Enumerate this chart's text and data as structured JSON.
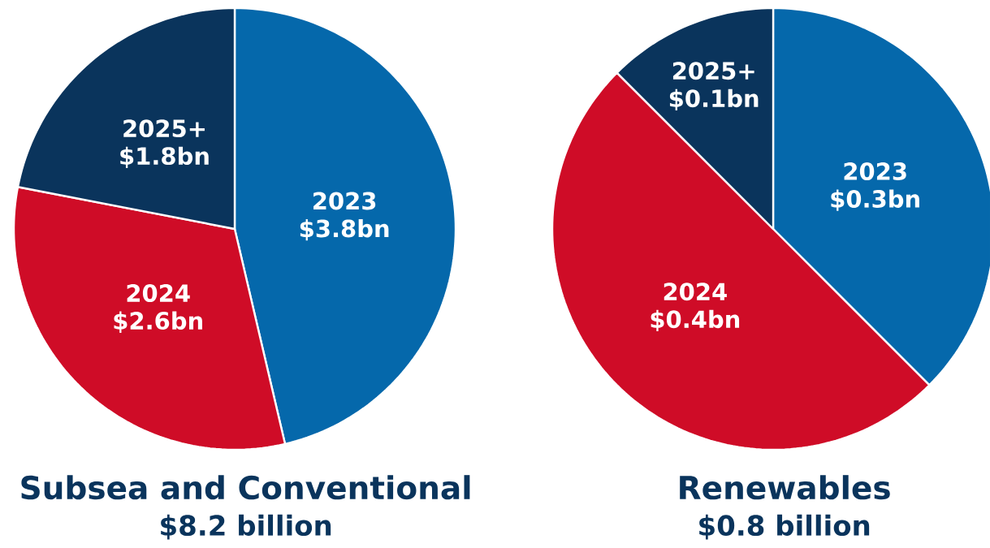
{
  "chart_data": [
    {
      "type": "pie",
      "title": "Subsea and Conventional",
      "subtitle": "$8.2 billion",
      "categories": [
        "2023",
        "2024",
        "2025+"
      ],
      "values": [
        3.8,
        2.6,
        1.8
      ],
      "colors": [
        "#0568ab",
        "#cf0c27",
        "#0a345c"
      ],
      "value_labels": [
        "$3.8bn",
        "$2.6bn",
        "$1.8bn"
      ]
    },
    {
      "type": "pie",
      "title": "Renewables",
      "subtitle": "$0.8 billion",
      "categories": [
        "2023",
        "2024",
        "2025+"
      ],
      "values": [
        0.3,
        0.4,
        0.1
      ],
      "colors": [
        "#0568ab",
        "#cf0c27",
        "#0a345c"
      ],
      "value_labels": [
        "$0.3bn",
        "$0.4bn",
        "$0.1bn"
      ]
    }
  ]
}
